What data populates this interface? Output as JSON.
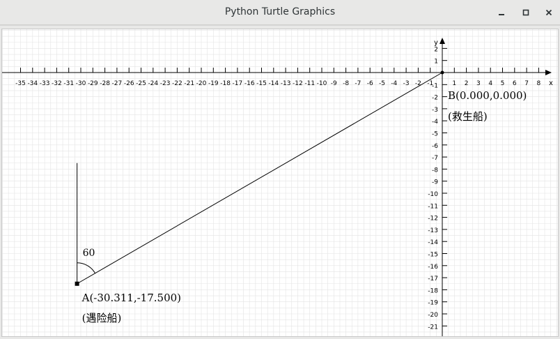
{
  "window": {
    "title": "Python Turtle Graphics",
    "buttons": [
      "minimize-icon",
      "maximize-icon",
      "close-icon"
    ]
  },
  "plot": {
    "x_axis_label": "x",
    "y_axis_label": "y",
    "x_range": [
      -35,
      8
    ],
    "y_range": [
      -21,
      2
    ],
    "grid": true,
    "axis_color": "#000000",
    "grid_color": "#e4e4e4"
  },
  "drawing": {
    "point_a": {
      "label": "A(-30.311,-17.500)",
      "caption": "(遇险船)",
      "x": -30.311,
      "y": -17.5
    },
    "point_b": {
      "label": "B(0.000,0.000)",
      "caption": "(救生船)",
      "x": 0,
      "y": 0
    },
    "heading_line_top_y": -7.5,
    "angle_label": "60"
  }
}
